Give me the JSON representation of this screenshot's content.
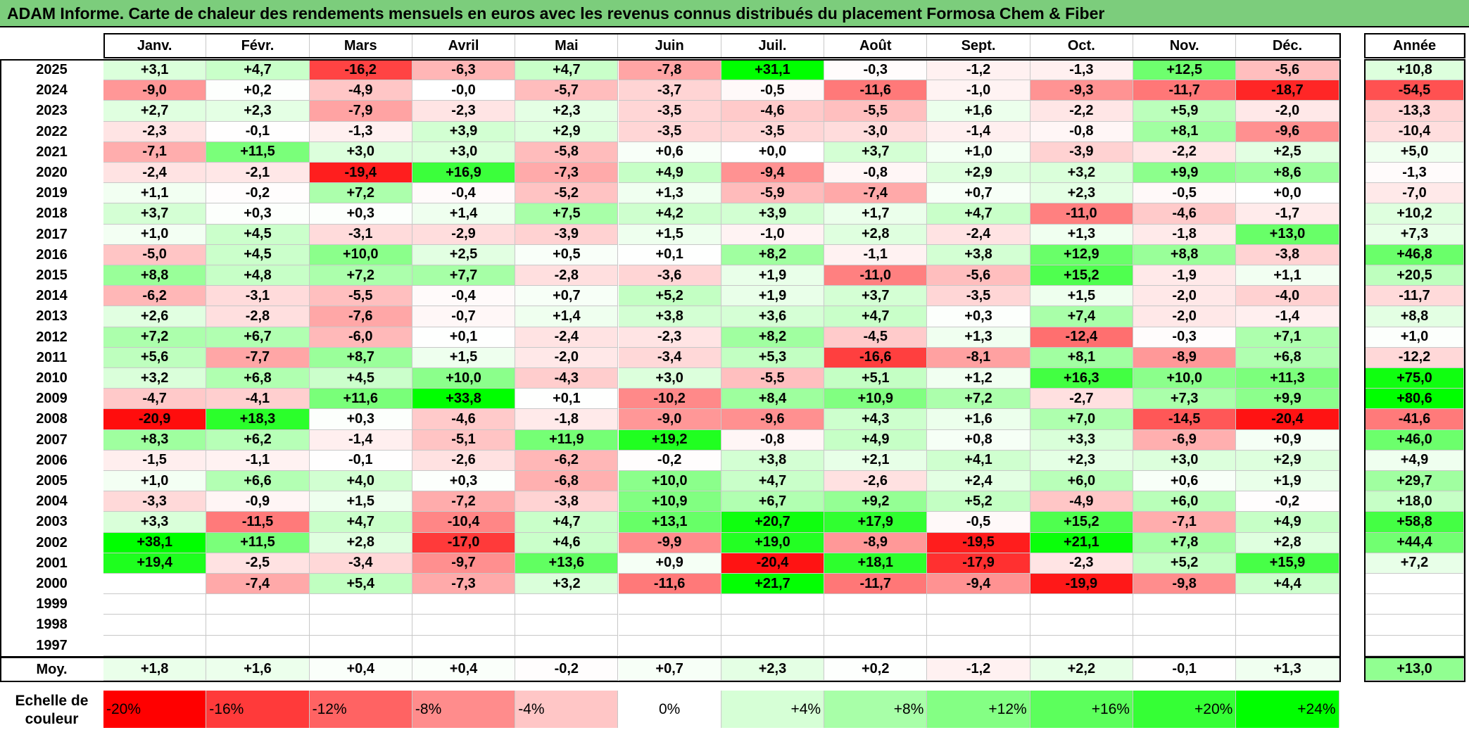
{
  "title": "ADAM Informe. Carte de chaleur des rendements mensuels en euros avec les revenus connus distribués du placement Formosa Chem & Fiber",
  "chart_data": {
    "type": "heatmap",
    "title": "ADAM Informe. Carte de chaleur des rendements mensuels en euros avec les revenus connus distribués du placement Formosa Chem & Fiber",
    "columns": [
      "Janv.",
      "Févr.",
      "Mars",
      "Avril",
      "Mai",
      "Juin",
      "Juil.",
      "Août",
      "Sept.",
      "Oct.",
      "Nov.",
      "Déc."
    ],
    "year_column_label": "Année",
    "rows": [
      {
        "year": "2025",
        "months": [
          "+3,1",
          "+4,7",
          "-16,2",
          "-6,3",
          "+4,7",
          "-7,8",
          "+31,1",
          "-0,3",
          "-1,2",
          "-1,3",
          "+12,5",
          "-5,6"
        ],
        "year_total": "+10,8"
      },
      {
        "year": "2024",
        "months": [
          "-9,0",
          "+0,2",
          "-4,9",
          "-0,0",
          "-5,7",
          "-3,7",
          "-0,5",
          "-11,6",
          "-1,0",
          "-9,3",
          "-11,7",
          "-18,7"
        ],
        "year_total": "-54,5"
      },
      {
        "year": "2023",
        "months": [
          "+2,7",
          "+2,3",
          "-7,9",
          "-2,3",
          "+2,3",
          "-3,5",
          "-4,6",
          "-5,5",
          "+1,6",
          "-2,2",
          "+5,9",
          "-2,0"
        ],
        "year_total": "-13,3"
      },
      {
        "year": "2022",
        "months": [
          "-2,3",
          "-0,1",
          "-1,3",
          "+3,9",
          "+2,9",
          "-3,5",
          "-3,5",
          "-3,0",
          "-1,4",
          "-0,8",
          "+8,1",
          "-9,6"
        ],
        "year_total": "-10,4"
      },
      {
        "year": "2021",
        "months": [
          "-7,1",
          "+11,5",
          "+3,0",
          "+3,0",
          "-5,8",
          "+0,6",
          "+0,0",
          "+3,7",
          "+1,0",
          "-3,9",
          "-2,2",
          "+2,5"
        ],
        "year_total": "+5,0"
      },
      {
        "year": "2020",
        "months": [
          "-2,4",
          "-2,1",
          "-19,4",
          "+16,9",
          "-7,3",
          "+4,9",
          "-9,4",
          "-0,8",
          "+2,9",
          "+3,2",
          "+9,9",
          "+8,6"
        ],
        "year_total": "-1,3"
      },
      {
        "year": "2019",
        "months": [
          "+1,1",
          "-0,2",
          "+7,2",
          "-0,4",
          "-5,2",
          "+1,3",
          "-5,9",
          "-7,4",
          "+0,7",
          "+2,3",
          "-0,5",
          "+0,0"
        ],
        "year_total": "-7,0"
      },
      {
        "year": "2018",
        "months": [
          "+3,7",
          "+0,3",
          "+0,3",
          "+1,4",
          "+7,5",
          "+4,2",
          "+3,9",
          "+1,7",
          "+4,7",
          "-11,0",
          "-4,6",
          "-1,7"
        ],
        "year_total": "+10,2"
      },
      {
        "year": "2017",
        "months": [
          "+1,0",
          "+4,5",
          "-3,1",
          "-2,9",
          "-3,9",
          "+1,5",
          "-1,0",
          "+2,8",
          "-2,4",
          "+1,3",
          "-1,8",
          "+13,0"
        ],
        "year_total": "+7,3"
      },
      {
        "year": "2016",
        "months": [
          "-5,0",
          "+4,5",
          "+10,0",
          "+2,5",
          "+0,5",
          "+0,1",
          "+8,2",
          "-1,1",
          "+3,8",
          "+12,9",
          "+8,8",
          "-3,8"
        ],
        "year_total": "+46,8"
      },
      {
        "year": "2015",
        "months": [
          "+8,8",
          "+4,8",
          "+7,2",
          "+7,7",
          "-2,8",
          "-3,6",
          "+1,9",
          "-11,0",
          "-5,6",
          "+15,2",
          "-1,9",
          "+1,1"
        ],
        "year_total": "+20,5"
      },
      {
        "year": "2014",
        "months": [
          "-6,2",
          "-3,1",
          "-5,5",
          "-0,4",
          "+0,7",
          "+5,2",
          "+1,9",
          "+3,7",
          "-3,5",
          "+1,5",
          "-2,0",
          "-4,0"
        ],
        "year_total": "-11,7"
      },
      {
        "year": "2013",
        "months": [
          "+2,6",
          "-2,8",
          "-7,6",
          "-0,7",
          "+1,4",
          "+3,8",
          "+3,6",
          "+4,7",
          "+0,3",
          "+7,4",
          "-2,0",
          "-1,4"
        ],
        "year_total": "+8,8"
      },
      {
        "year": "2012",
        "months": [
          "+7,2",
          "+6,7",
          "-6,0",
          "+0,1",
          "-2,4",
          "-2,3",
          "+8,2",
          "-4,5",
          "+1,3",
          "-12,4",
          "-0,3",
          "+7,1"
        ],
        "year_total": "+1,0"
      },
      {
        "year": "2011",
        "months": [
          "+5,6",
          "-7,7",
          "+8,7",
          "+1,5",
          "-2,0",
          "-3,4",
          "+5,3",
          "-16,6",
          "-8,1",
          "+8,1",
          "-8,9",
          "+6,8"
        ],
        "year_total": "-12,2"
      },
      {
        "year": "2010",
        "months": [
          "+3,2",
          "+6,8",
          "+4,5",
          "+10,0",
          "-4,3",
          "+3,0",
          "-5,5",
          "+5,1",
          "+1,2",
          "+16,3",
          "+10,0",
          "+11,3"
        ],
        "year_total": "+75,0"
      },
      {
        "year": "2009",
        "months": [
          "-4,7",
          "-4,1",
          "+11,6",
          "+33,8",
          "+0,1",
          "-10,2",
          "+8,4",
          "+10,9",
          "+7,2",
          "-2,7",
          "+7,3",
          "+9,9"
        ],
        "year_total": "+80,6"
      },
      {
        "year": "2008",
        "months": [
          "-20,9",
          "+18,3",
          "+0,3",
          "-4,6",
          "-1,8",
          "-9,0",
          "-9,6",
          "+4,3",
          "+1,6",
          "+7,0",
          "-14,5",
          "-20,4"
        ],
        "year_total": "-41,6"
      },
      {
        "year": "2007",
        "months": [
          "+8,3",
          "+6,2",
          "-1,4",
          "-5,1",
          "+11,9",
          "+19,2",
          "-0,8",
          "+4,9",
          "+0,8",
          "+3,3",
          "-6,9",
          "+0,9"
        ],
        "year_total": "+46,0"
      },
      {
        "year": "2006",
        "months": [
          "-1,5",
          "-1,1",
          "-0,1",
          "-2,6",
          "-6,2",
          "-0,2",
          "+3,8",
          "+2,1",
          "+4,1",
          "+2,3",
          "+3,0",
          "+2,9"
        ],
        "year_total": "+4,9"
      },
      {
        "year": "2005",
        "months": [
          "+1,0",
          "+6,6",
          "+4,0",
          "+0,3",
          "-6,8",
          "+10,0",
          "+4,7",
          "-2,6",
          "+2,4",
          "+6,0",
          "+0,6",
          "+1,9"
        ],
        "year_total": "+29,7"
      },
      {
        "year": "2004",
        "months": [
          "-3,3",
          "-0,9",
          "+1,5",
          "-7,2",
          "-3,8",
          "+10,9",
          "+6,7",
          "+9,2",
          "+5,2",
          "-4,9",
          "+6,0",
          "-0,2"
        ],
        "year_total": "+18,0"
      },
      {
        "year": "2003",
        "months": [
          "+3,3",
          "-11,5",
          "+4,7",
          "-10,4",
          "+4,7",
          "+13,1",
          "+20,7",
          "+17,9",
          "-0,5",
          "+15,2",
          "-7,1",
          "+4,9"
        ],
        "year_total": "+58,8"
      },
      {
        "year": "2002",
        "months": [
          "+38,1",
          "+11,5",
          "+2,8",
          "-17,0",
          "+4,6",
          "-9,9",
          "+19,0",
          "-8,9",
          "-19,5",
          "+21,1",
          "+7,8",
          "+2,8"
        ],
        "year_total": "+44,4"
      },
      {
        "year": "2001",
        "months": [
          "+19,4",
          "-2,5",
          "-3,4",
          "-9,7",
          "+13,6",
          "+0,9",
          "-20,4",
          "+18,1",
          "-17,9",
          "-2,3",
          "+5,2",
          "+15,9"
        ],
        "year_total": "+7,2"
      },
      {
        "year": "2000",
        "months": [
          "",
          "-7,4",
          "+5,4",
          "-7,3",
          "+3,2",
          "-11,6",
          "+21,7",
          "-11,7",
          "-9,4",
          "-19,9",
          "-9,8",
          "+4,4"
        ],
        "year_total": ""
      },
      {
        "year": "1999",
        "months": [
          "",
          "",
          "",
          "",
          "",
          "",
          "",
          "",
          "",
          "",
          "",
          ""
        ],
        "year_total": ""
      },
      {
        "year": "1998",
        "months": [
          "",
          "",
          "",
          "",
          "",
          "",
          "",
          "",
          "",
          "",
          "",
          ""
        ],
        "year_total": ""
      },
      {
        "year": "1997",
        "months": [
          "",
          "",
          "",
          "",
          "",
          "",
          "",
          "",
          "",
          "",
          "",
          ""
        ],
        "year_total": ""
      }
    ],
    "average": {
      "label": "Moy.",
      "months": [
        "+1,8",
        "+1,6",
        "+0,4",
        "+0,4",
        "-0,2",
        "+0,7",
        "+2,3",
        "+0,2",
        "-1,2",
        "+2,2",
        "-0,1",
        "+1,3"
      ],
      "year_total": "+13,0"
    },
    "color_scale": {
      "label": "Echelle de couleur",
      "stops": [
        "-20%",
        "-16%",
        "-12%",
        "-8%",
        "-4%",
        "0%",
        "+4%",
        "+8%",
        "+12%",
        "+16%",
        "+20%",
        "+24%"
      ],
      "colors": [
        "#ff0000",
        "#ff3a3a",
        "#ff6363",
        "#ff8c8c",
        "#ffc6c6",
        "#ffffff",
        "#d6ffd6",
        "#a8ffa8",
        "#84ff84",
        "#5cff5c",
        "#35ff35",
        "#00ff00"
      ]
    }
  }
}
